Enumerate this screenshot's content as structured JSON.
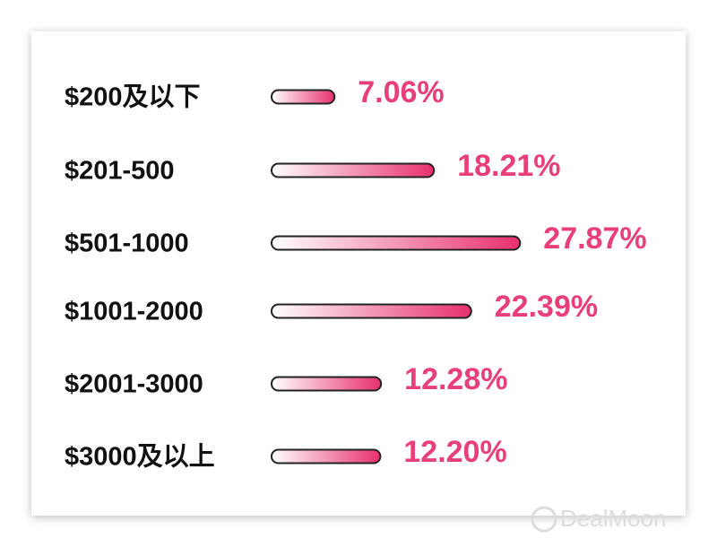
{
  "chart_data": {
    "type": "bar",
    "horizontal": true,
    "categories": [
      "$200及以下",
      "$201-500",
      "$501-1000",
      "$1001-2000",
      "$2001-3000",
      "$3000及以上"
    ],
    "values": [
      7.06,
      18.21,
      27.87,
      22.39,
      12.28,
      12.2
    ],
    "value_labels": [
      "7.06%",
      "18.21%",
      "27.87%",
      "22.39%",
      "12.28%",
      "12.20%"
    ],
    "color": "#e8306e",
    "label_color": "#e83f7a"
  },
  "watermark": "DealMoon"
}
